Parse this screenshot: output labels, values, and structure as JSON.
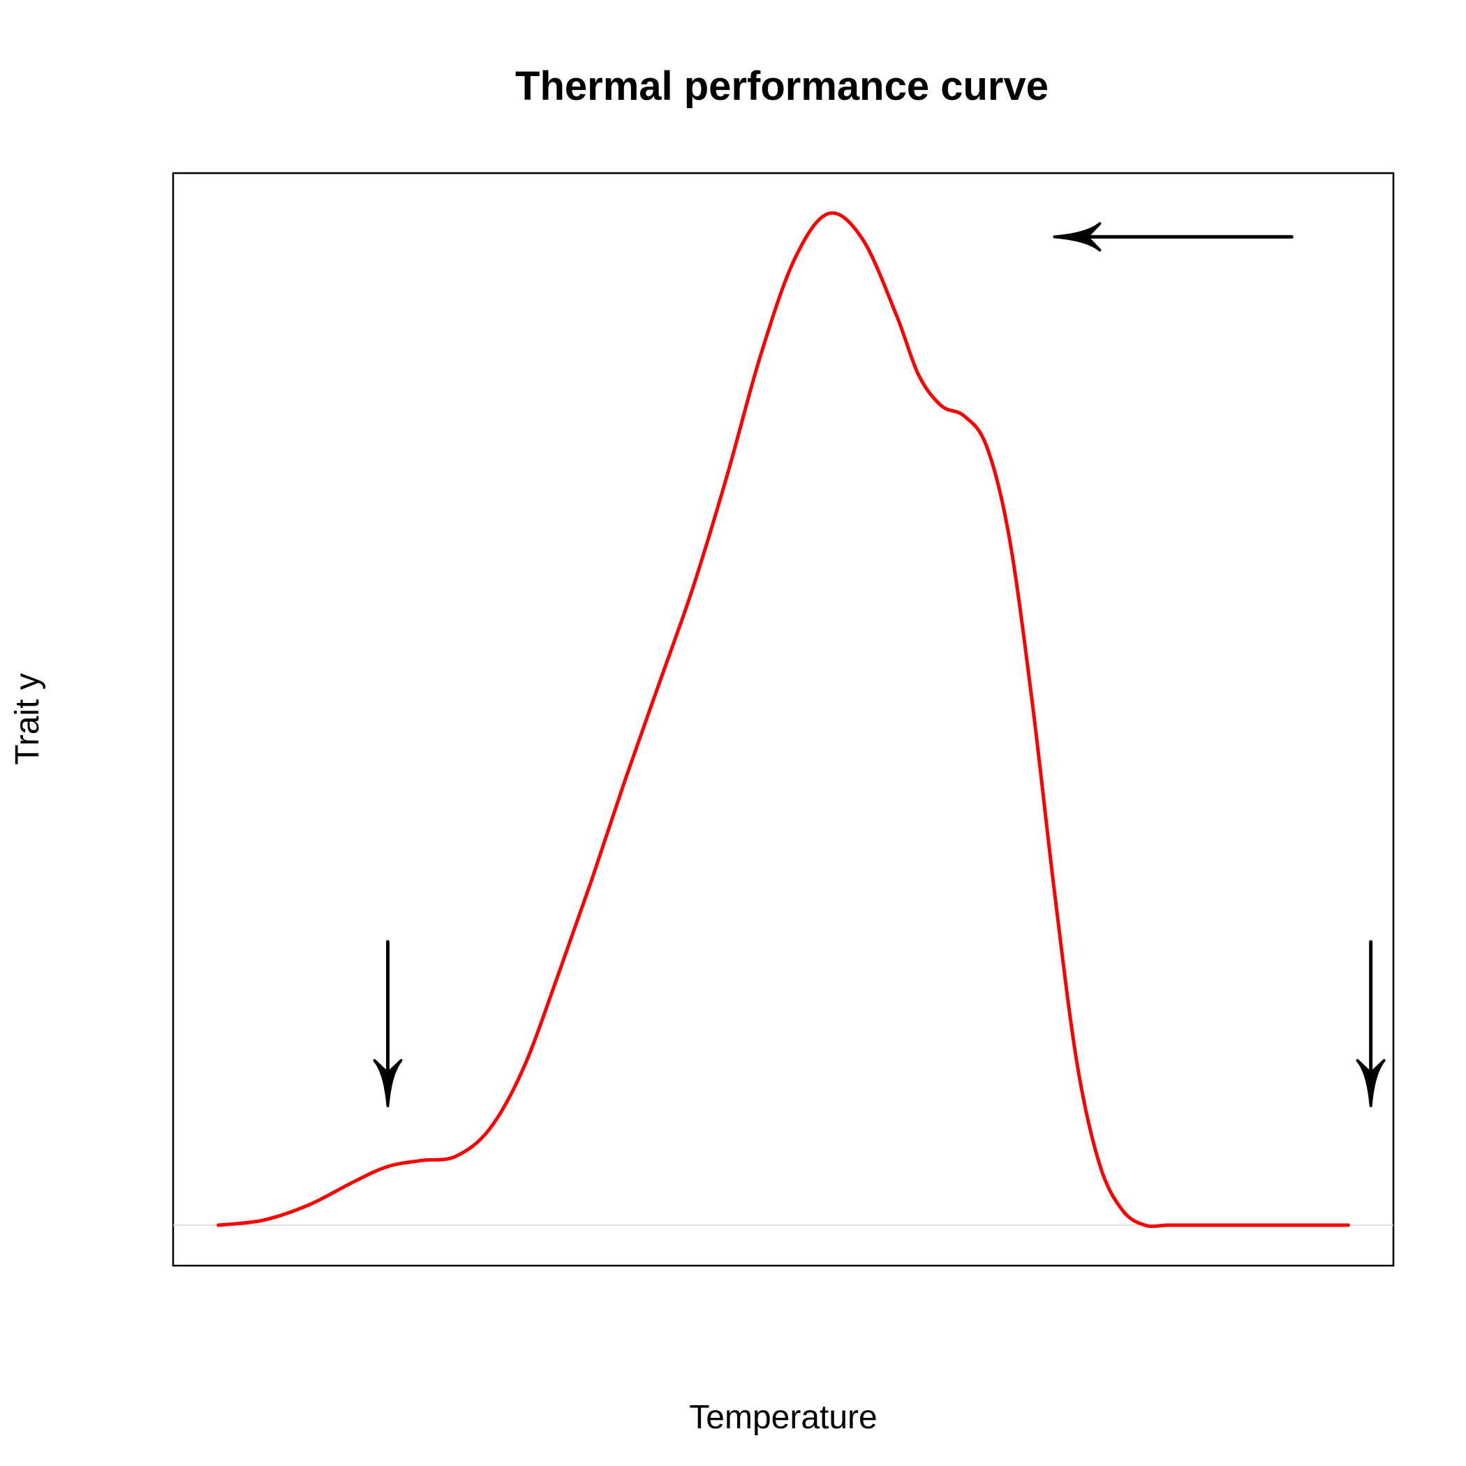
{
  "chart_data": {
    "type": "line",
    "title": "Thermal performance curve",
    "xlabel": "Temperature",
    "ylabel": "Trait y",
    "xlim": [
      -0.04,
      1.04
    ],
    "ylim": [
      -0.04,
      1.04
    ],
    "show_axes_ticks": false,
    "grid": false,
    "baseline_y": 0,
    "series": [
      {
        "color": "#ff0000",
        "x": [
          0.0,
          0.04,
          0.08,
          0.12,
          0.15,
          0.18,
          0.21,
          0.24,
          0.27,
          0.3,
          0.33,
          0.36,
          0.39,
          0.42,
          0.45,
          0.48,
          0.51,
          0.54,
          0.57,
          0.6,
          0.62,
          0.64,
          0.66,
          0.68,
          0.7,
          0.72,
          0.74,
          0.76,
          0.78,
          0.8,
          0.82,
          0.84,
          0.86,
          0.88,
          0.9,
          0.92,
          0.94,
          0.96,
          0.98,
          1.0
        ],
        "y": [
          0.0,
          0.005,
          0.02,
          0.043,
          0.058,
          0.064,
          0.068,
          0.095,
          0.155,
          0.245,
          0.34,
          0.44,
          0.535,
          0.63,
          0.74,
          0.86,
          0.955,
          1.0,
          0.975,
          0.9,
          0.84,
          0.81,
          0.8,
          0.77,
          0.68,
          0.52,
          0.33,
          0.16,
          0.06,
          0.015,
          0.0,
          0.0,
          0.0,
          0.0,
          0.0,
          0.0,
          0.0,
          0.0,
          0.0,
          0.0
        ]
      }
    ],
    "arrows": [
      {
        "direction": "down",
        "x": 0.15,
        "y_from": 0.28,
        "y_to": 0.118
      },
      {
        "direction": "left",
        "y": 0.977,
        "x_from": 0.95,
        "x_to": 0.74
      },
      {
        "direction": "down",
        "x": 1.02,
        "y_from": 0.28,
        "y_to": 0.118
      }
    ]
  },
  "colors": {
    "curve": "#ff0000",
    "arrows": "#000000",
    "frame": "#000000",
    "baseline": "#d9d9d9"
  }
}
